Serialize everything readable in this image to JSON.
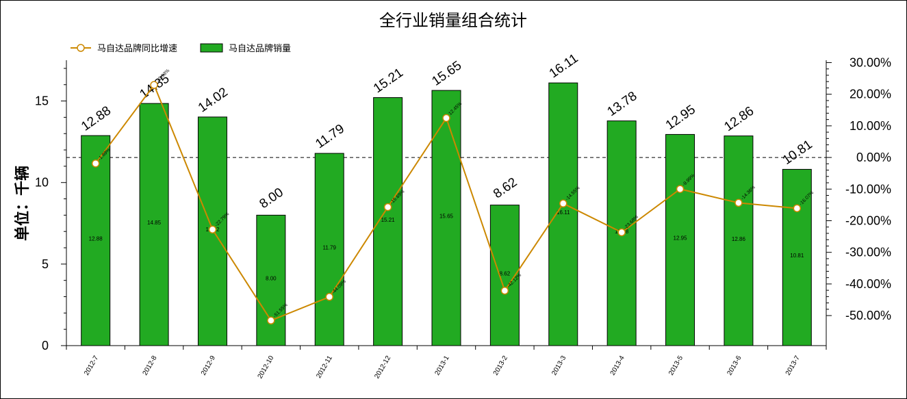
{
  "chart_data": {
    "type": "bar",
    "title": "全行业销量组合统计",
    "ylabel": "单位：千辆",
    "categories": [
      "2012-7",
      "2012-8",
      "2012-9",
      "2012-10",
      "2012-11",
      "2012-12",
      "2013-1",
      "2013-2",
      "2013-3",
      "2013-4",
      "2013-5",
      "2013-6",
      "2013-7"
    ],
    "series": [
      {
        "name": "马自达品牌销量",
        "kind": "bar",
        "axis": "left",
        "values": [
          12.88,
          14.85,
          14.02,
          8.0,
          11.79,
          15.21,
          15.65,
          8.62,
          16.11,
          13.78,
          12.95,
          12.86,
          10.81
        ],
        "labels": [
          "12.88",
          "14.85",
          "14.02",
          "8.00",
          "11.79",
          "15.21",
          "15.65",
          "8.62",
          "16.11",
          "13.78",
          "12.95",
          "12.86",
          "10.81"
        ]
      },
      {
        "name": "马自达品牌同比增速",
        "kind": "line",
        "axis": "right",
        "values": [
          -1.89,
          22.93,
          -22.79,
          -51.55,
          -44.09,
          -15.69,
          12.45,
          -42.12,
          -14.55,
          -23.68,
          -9.99,
          -14.36,
          -16.07
        ],
        "labels": [
          "-1.89%",
          "22.93%",
          "-22.79%",
          "-51.55%",
          "-44.09%",
          "-15.69%",
          "12.45%",
          "-42.12%",
          "-14.55%",
          "-23.68%",
          "-9.99%",
          "-14.36%",
          "-16.07%"
        ]
      }
    ],
    "yticks_left": [
      "0",
      "5",
      "10",
      "15"
    ],
    "ylim_left": [
      0,
      17.5
    ],
    "yticks_right": [
      "30.00%",
      "20.00%",
      "10.00%",
      "0.00%",
      "-10.00%",
      "-20.00%",
      "-30.00%",
      "-40.00%",
      "-50.00%"
    ],
    "ylim_right": [
      -59.5,
      30.75
    ],
    "zero_line": "dashed",
    "legend_position": "top-left",
    "colors": {
      "bar": "#22aa22",
      "bar_border": "#000000",
      "line": "#cc8800",
      "marker_fill": "#ffffff"
    }
  }
}
